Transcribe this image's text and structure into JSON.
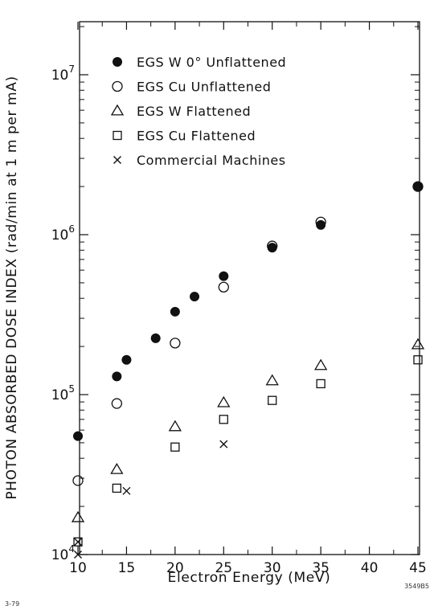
{
  "chart_data": {
    "type": "scatter",
    "title": "",
    "xlabel": "Electron Energy (MeV)",
    "ylabel": "PHOTON ABSORBED DOSE INDEX (rad/min at 1 m per mA)",
    "xlim": [
      10,
      45
    ],
    "ylim": [
      10000,
      30000000
    ],
    "yscale": "log",
    "grid": false,
    "legend_position": "top-left",
    "x_ticks": [
      "10",
      "15",
      "20",
      "25",
      "30",
      "35",
      "40",
      "45"
    ],
    "y_ticks": [
      {
        "value": 10000,
        "base": "10",
        "exp": "4"
      },
      {
        "value": 100000,
        "base": "10",
        "exp": "5"
      },
      {
        "value": 1000000,
        "base": "10",
        "exp": "6"
      },
      {
        "value": 10000000,
        "base": "10",
        "exp": "7"
      }
    ],
    "series": [
      {
        "name": "EGS W 0° Unflattened",
        "marker": "filled-circle",
        "x": [
          10,
          14,
          15,
          18,
          20,
          22,
          25,
          30,
          35,
          45
        ],
        "y": [
          55000,
          130000,
          165000,
          225000,
          330000,
          410000,
          550000,
          830000,
          1150000,
          2000000
        ]
      },
      {
        "name": "EGS Cu Unflattened",
        "marker": "open-circle",
        "x": [
          10,
          14,
          20,
          25,
          30,
          35,
          45
        ],
        "y": [
          29000,
          88000,
          210000,
          470000,
          850000,
          1200000,
          2000000
        ]
      },
      {
        "name": "EGS W Flattened",
        "marker": "open-triangle",
        "x": [
          10,
          14,
          20,
          25,
          30,
          35,
          45
        ],
        "y": [
          17000,
          34000,
          63000,
          89000,
          122000,
          152000,
          205000
        ]
      },
      {
        "name": "EGS Cu Flattened",
        "marker": "open-square",
        "x": [
          10,
          14,
          20,
          25,
          30,
          35,
          45
        ],
        "y": [
          12000,
          26000,
          47000,
          70000,
          92000,
          117000,
          165000
        ]
      },
      {
        "name": "Commercial Machines",
        "marker": "cross",
        "x": [
          10,
          10,
          15,
          25
        ],
        "y": [
          12000,
          10000,
          25000,
          49000
        ]
      }
    ]
  },
  "corner_labels": {
    "left": "3-79",
    "right": "3549B5"
  }
}
